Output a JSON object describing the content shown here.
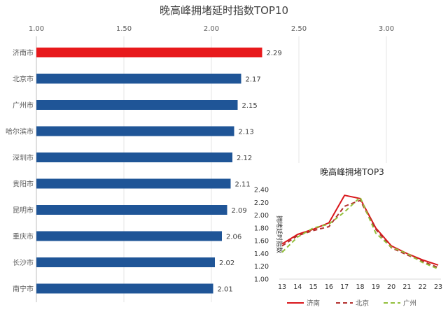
{
  "chart_data": [
    {
      "type": "bar",
      "orientation": "horizontal",
      "title": "晚高峰拥堵延时指数TOP10",
      "categories": [
        "济南市",
        "北京市",
        "广州市",
        "哈尔滨市",
        "深圳市",
        "贵阳市",
        "昆明市",
        "重庆市",
        "长沙市",
        "南宁市"
      ],
      "values": [
        2.29,
        2.17,
        2.15,
        2.13,
        2.12,
        2.11,
        2.09,
        2.06,
        2.02,
        2.01
      ],
      "value_labels": [
        "2.29",
        "2.17",
        "2.15",
        "2.13",
        "2.12",
        "2.11",
        "2.09",
        "2.06",
        "2.02",
        "2.01"
      ],
      "xlim": [
        1.0,
        3.3
      ],
      "xticks": [
        1.0,
        1.5,
        2.0,
        2.5,
        3.0
      ],
      "xtick_labels": [
        "1.00",
        "1.50",
        "2.00",
        "2.50",
        "3.00"
      ],
      "axis_position": "top",
      "grid": true,
      "colors": {
        "highlight": "#e8191c",
        "default": "#1f5597"
      }
    },
    {
      "type": "line",
      "title": "晚高峰拥堵TOP3",
      "ylabel": "拥堵延时指数",
      "x": [
        13,
        14,
        15,
        16,
        17,
        18,
        19,
        20,
        21,
        22,
        23
      ],
      "ylim": [
        1.0,
        2.4
      ],
      "yticks": [
        1.0,
        1.2,
        1.4,
        1.6,
        1.8,
        2.0,
        2.2,
        2.4
      ],
      "ytick_labels": [
        "1.00",
        "1.20",
        "1.40",
        "1.60",
        "1.80",
        "2.00",
        "2.20",
        "2.40"
      ],
      "xtick_labels": [
        "13",
        "14",
        "15",
        "16",
        "17",
        "18",
        "19",
        "20",
        "21",
        "22",
        "23"
      ],
      "grid": false,
      "legend_position": "bottom",
      "series": [
        {
          "name": "济南",
          "color": "#d9161b",
          "dash": "solid",
          "values": [
            1.55,
            1.7,
            1.78,
            1.88,
            2.31,
            2.26,
            1.8,
            1.52,
            1.4,
            1.3,
            1.22
          ]
        },
        {
          "name": "北京",
          "color": "#b3302e",
          "dash": "dashed",
          "values": [
            1.52,
            1.68,
            1.76,
            1.82,
            2.14,
            2.23,
            1.78,
            1.49,
            1.38,
            1.28,
            1.18
          ]
        },
        {
          "name": "广州",
          "color": "#92bf3b",
          "dash": "dashed",
          "values": [
            1.42,
            1.66,
            1.8,
            1.86,
            2.05,
            2.28,
            1.72,
            1.5,
            1.4,
            1.26,
            1.16
          ]
        }
      ]
    }
  ]
}
